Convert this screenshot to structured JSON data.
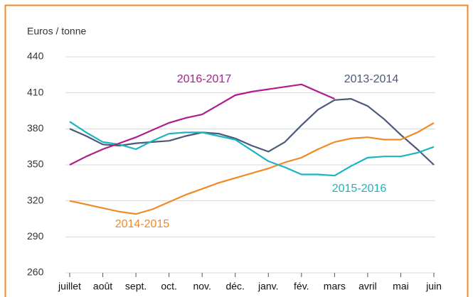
{
  "chart_data": {
    "type": "line",
    "y_label": "Euros / tonne",
    "x": [
      0,
      0.5,
      1,
      1.5,
      2,
      2.5,
      3,
      3.5,
      4,
      4.5,
      5,
      5.5,
      6,
      6.5,
      7,
      7.5,
      8,
      8.5,
      9,
      9.5,
      10,
      10.5,
      11
    ],
    "xlim": [
      0,
      11
    ],
    "xticks": [
      {
        "value": 0,
        "label": "juillet"
      },
      {
        "value": 1,
        "label": "août"
      },
      {
        "value": 2,
        "label": "sept."
      },
      {
        "value": 3,
        "label": "oct."
      },
      {
        "value": 4,
        "label": "nov."
      },
      {
        "value": 5,
        "label": "déc."
      },
      {
        "value": 6,
        "label": "janv."
      },
      {
        "value": 7,
        "label": "fév."
      },
      {
        "value": 8,
        "label": "mars"
      },
      {
        "value": 9,
        "label": "avril"
      },
      {
        "value": 10,
        "label": "mai"
      },
      {
        "value": 11,
        "label": "juin"
      }
    ],
    "ylim": [
      260,
      440
    ],
    "yticks": [
      260,
      290,
      320,
      350,
      380,
      410,
      440
    ],
    "grid": true,
    "series": [
      {
        "name": "2013-2014",
        "color": "#4a5a78",
        "values": [
          380,
          374,
          367,
          366,
          368,
          369,
          370,
          374,
          377,
          376,
          372,
          366,
          361,
          369,
          383,
          396,
          404,
          405,
          399,
          388,
          375,
          363,
          350
        ]
      },
      {
        "name": "2014-2015",
        "color": "#f08a24",
        "values": [
          320,
          317,
          314,
          311,
          309,
          313,
          319,
          325,
          330,
          335,
          339,
          343,
          347,
          352,
          356,
          363,
          369,
          372,
          373,
          371,
          371,
          377,
          385
        ]
      },
      {
        "name": "2015-2016",
        "color": "#1ab5c0",
        "values": [
          386,
          377,
          369,
          367,
          363,
          370,
          376,
          377,
          377,
          374,
          371,
          362,
          353,
          348,
          342,
          342,
          341,
          349,
          356,
          357,
          357,
          360,
          365
        ]
      },
      {
        "name": "2016-2017",
        "color": "#b01c8c",
        "values": [
          350,
          357,
          363,
          368,
          373,
          379,
          385,
          389,
          392,
          400,
          408,
          411,
          413,
          415,
          417,
          411,
          405,
          null,
          null,
          null,
          null,
          null,
          null
        ]
      }
    ]
  }
}
